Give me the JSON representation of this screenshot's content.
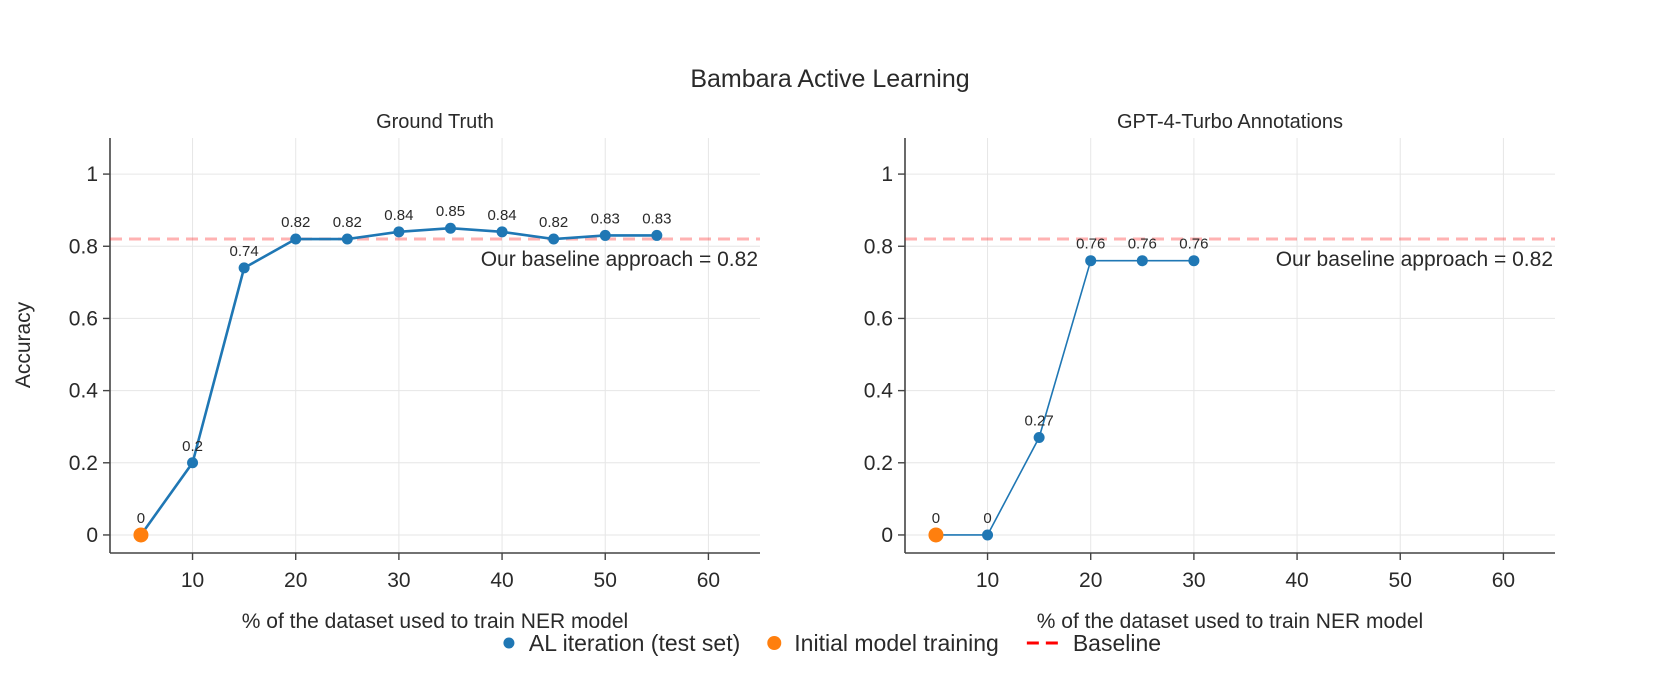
{
  "chart_data": {
    "title": "Bambara Active Learning",
    "type": "line",
    "shared_ylabel": "Accuracy",
    "colors": {
      "al": "#1f77b4",
      "initial": "#ff7f0e",
      "baseline": "#ff0000"
    },
    "legend": {
      "placement": "bottom-center",
      "items": [
        {
          "key": "al",
          "label": "AL iteration (test set)",
          "marker": "dot"
        },
        {
          "key": "initial",
          "label": "Initial model training",
          "marker": "dot"
        },
        {
          "key": "baseline",
          "label": "Baseline",
          "marker": "dash"
        }
      ]
    },
    "panels": [
      {
        "subtitle": "Ground Truth",
        "xlabel": "% of the dataset used to train NER model",
        "xlim": [
          2,
          65
        ],
        "ylim": [
          -0.05,
          1.1
        ],
        "xticks": [
          10,
          20,
          30,
          40,
          50,
          60
        ],
        "yticks": [
          0,
          0.2,
          0.4,
          0.6,
          0.8,
          1
        ],
        "ytick_labels": [
          "0",
          "0.2",
          "0.4",
          "0.6",
          "0.8",
          "1"
        ],
        "grid": true,
        "baseline": {
          "value": 0.82,
          "label": "Our baseline approach = 0.82"
        },
        "series": {
          "x": [
            5,
            10,
            15,
            20,
            25,
            30,
            35,
            40,
            45,
            50,
            55
          ],
          "y": [
            0,
            0.2,
            0.74,
            0.82,
            0.82,
            0.84,
            0.85,
            0.84,
            0.82,
            0.83,
            0.83
          ],
          "labels": [
            "0",
            "0.2",
            "0.74",
            "0.82",
            "0.82",
            "0.84",
            "0.85",
            "0.84",
            "0.82",
            "0.83",
            "0.83"
          ]
        },
        "initial_point": {
          "x": 5,
          "y": 0
        }
      },
      {
        "subtitle": "GPT-4-Turbo Annotations",
        "xlabel": "% of the dataset used to train NER model",
        "xlim": [
          2,
          65
        ],
        "ylim": [
          -0.05,
          1.1
        ],
        "xticks": [
          10,
          20,
          30,
          40,
          50,
          60
        ],
        "yticks": [
          0,
          0.2,
          0.4,
          0.6,
          0.8,
          1
        ],
        "ytick_labels": [
          "0",
          "0.2",
          "0.4",
          "0.6",
          "0.8",
          "1"
        ],
        "grid": true,
        "baseline": {
          "value": 0.82,
          "label": "Our baseline approach = 0.82"
        },
        "series": {
          "x": [
            5,
            10,
            15,
            20,
            25,
            30
          ],
          "y": [
            0,
            0,
            0.27,
            0.76,
            0.76,
            0.76
          ],
          "labels": [
            "0",
            "0",
            "0.27",
            "0.76",
            "0.76",
            "0.76"
          ]
        },
        "initial_point": {
          "x": 5,
          "y": 0
        }
      }
    ]
  }
}
